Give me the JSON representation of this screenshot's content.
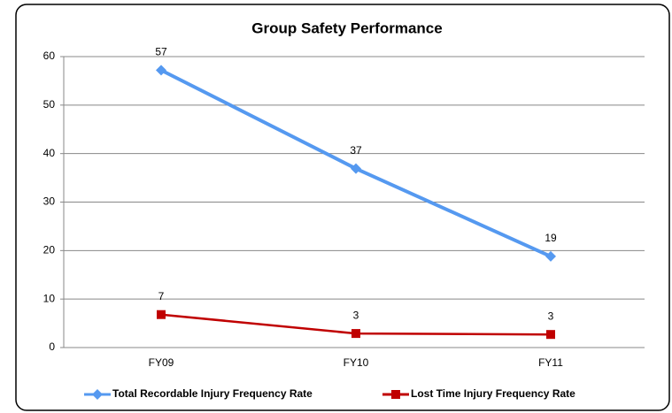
{
  "chart_data": {
    "type": "line",
    "title": "Group Safety Performance",
    "categories": [
      "FY09",
      "FY10",
      "FY11"
    ],
    "series": [
      {
        "name": "Total Recordable Injury Frequency Rate",
        "color": "#5599f0",
        "marker": "diamond",
        "values": [
          57.2,
          36.9,
          18.8
        ],
        "value_labels": [
          "57",
          "37",
          "19"
        ]
      },
      {
        "name": "Lost Time Injury Frequency Rate",
        "color": "#c00000",
        "marker": "square",
        "values": [
          6.8,
          2.9,
          2.7
        ],
        "value_labels": [
          "7",
          "3",
          "3"
        ]
      }
    ],
    "ylim": [
      0,
      60
    ],
    "yticks": [
      0,
      10,
      20,
      30,
      40,
      50,
      60
    ],
    "grid": true,
    "legend": "bottom"
  }
}
